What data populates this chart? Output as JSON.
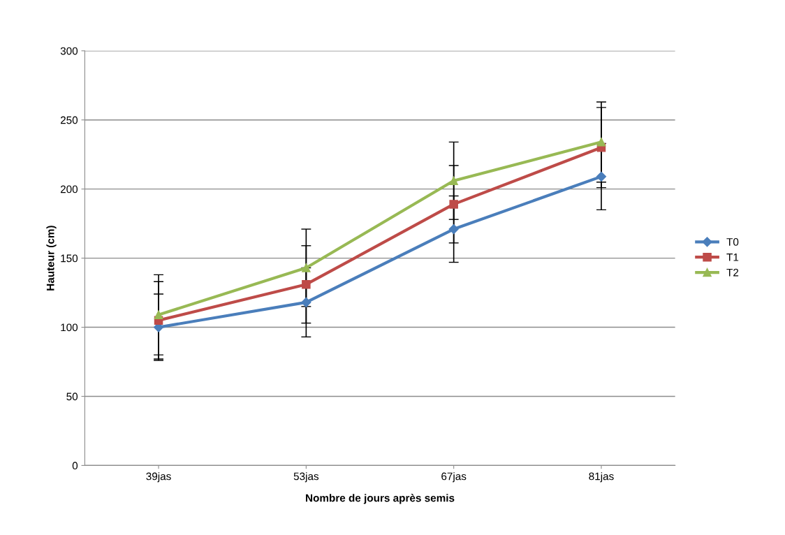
{
  "chart_data": {
    "type": "line",
    "xlabel": "Nombre de jours après semis",
    "ylabel": "Hauteur (cm)",
    "categories": [
      "39jas",
      "53jas",
      "67jas",
      "81jas"
    ],
    "series": [
      {
        "name": "T0",
        "color": "#4a7ebb",
        "marker": "diamond",
        "values": [
          100,
          118,
          171,
          209
        ],
        "errors": [
          24,
          25,
          24,
          24
        ]
      },
      {
        "name": "T1",
        "color": "#be4b48",
        "marker": "square",
        "values": [
          105,
          131,
          189,
          230
        ],
        "errors": [
          28,
          28,
          28,
          29
        ]
      },
      {
        "name": "T2",
        "color": "#98b954",
        "marker": "triangle",
        "values": [
          109,
          143,
          206,
          234
        ],
        "errors": [
          29,
          28,
          28,
          29
        ]
      }
    ],
    "ylim": [
      0,
      300
    ],
    "yticks": [
      0,
      50,
      100,
      150,
      200,
      250,
      300
    ],
    "grid": "y",
    "legend": "right"
  }
}
